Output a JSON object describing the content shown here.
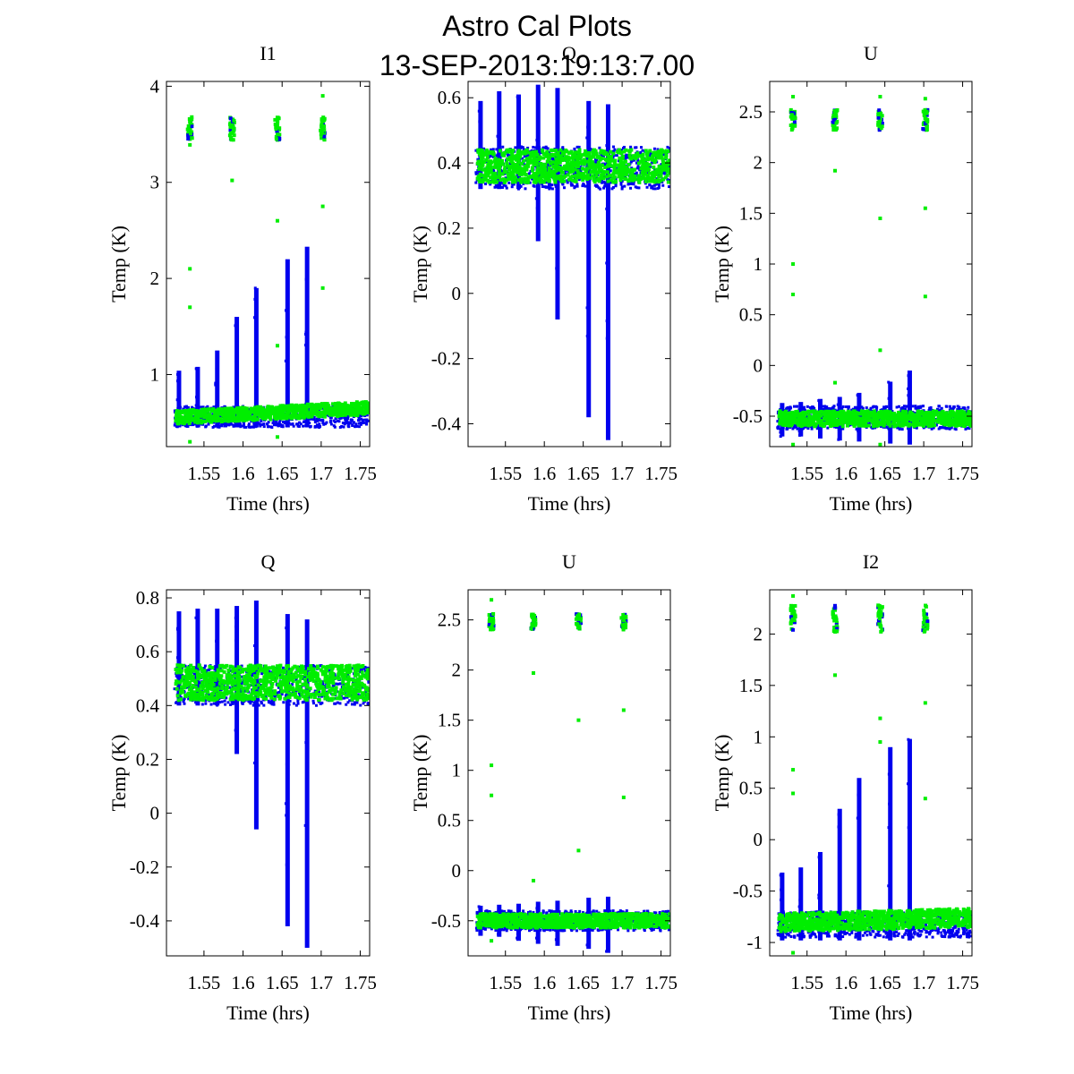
{
  "figure": {
    "title_line1": "Astro Cal Plots",
    "title_line2": "13-SEP-2013:19:13:7.00"
  },
  "colors": {
    "blue": "#0000ee",
    "green": "#00ee00"
  },
  "chart_data": [
    {
      "type": "scatter",
      "title": "I1",
      "xlabel": "Time (hrs)",
      "ylabel": "Temp (K)",
      "xlim": [
        1.502,
        1.762
      ],
      "ylim": [
        0.25,
        4.05
      ],
      "xticks": [
        1.55,
        1.6,
        1.65,
        1.7,
        1.75
      ],
      "xtick_labels": [
        "1.55",
        "1.6",
        "1.65",
        "1.7",
        "1.75"
      ],
      "yticks": [
        1,
        2,
        3,
        4
      ],
      "ytick_labels": [
        "1",
        "2",
        "3",
        "4"
      ],
      "band": {
        "blue": [
          0.45,
          0.67
        ],
        "green": [
          0.48,
          0.62
        ],
        "green_trend": 0.1
      },
      "spikes": [
        {
          "x": 1.518,
          "top": 1.04,
          "bottom": 0.45
        },
        {
          "x": 1.542,
          "top": 1.08,
          "bottom": 0.45
        },
        {
          "x": 1.567,
          "top": 1.25,
          "bottom": 0.45
        },
        {
          "x": 1.592,
          "top": 1.6,
          "bottom": 0.45
        },
        {
          "x": 1.617,
          "top": 1.9,
          "bottom": 0.45
        },
        {
          "x": 1.657,
          "top": 2.2,
          "bottom": 0.45
        },
        {
          "x": 1.682,
          "top": 2.33,
          "bottom": 0.45
        }
      ],
      "cal_clusters": [
        {
          "x": 1.532,
          "center": 3.56,
          "spread": 0.12
        },
        {
          "x": 1.586,
          "center": 3.56,
          "spread": 0.12
        },
        {
          "x": 1.644,
          "center": 3.56,
          "spread": 0.12
        },
        {
          "x": 1.702,
          "center": 3.56,
          "spread": 0.12
        }
      ],
      "outliers": [
        {
          "x": 1.532,
          "y": 3.39
        },
        {
          "x": 1.532,
          "y": 2.1
        },
        {
          "x": 1.532,
          "y": 1.7
        },
        {
          "x": 1.586,
          "y": 3.02
        },
        {
          "x": 1.644,
          "y": 2.6
        },
        {
          "x": 1.644,
          "y": 1.3
        },
        {
          "x": 1.702,
          "y": 3.9
        },
        {
          "x": 1.702,
          "y": 2.75
        },
        {
          "x": 1.702,
          "y": 1.9
        },
        {
          "x": 1.532,
          "y": 0.3
        },
        {
          "x": 1.644,
          "y": 0.35
        }
      ]
    },
    {
      "type": "scatter",
      "title": "Q",
      "xlabel": "Time (hrs)",
      "ylabel": "Temp (K)",
      "xlim": [
        1.502,
        1.762
      ],
      "ylim": [
        -0.47,
        0.65
      ],
      "xticks": [
        1.55,
        1.6,
        1.65,
        1.7,
        1.75
      ],
      "xtick_labels": [
        "1.55",
        "1.6",
        "1.65",
        "1.7",
        "1.75"
      ],
      "yticks": [
        -0.4,
        -0.2,
        0,
        0.2,
        0.4,
        0.6
      ],
      "ytick_labels": [
        "-0.4",
        "-0.2",
        "0",
        "0.2",
        "0.4",
        "0.6"
      ],
      "band": {
        "blue": [
          0.32,
          0.45
        ],
        "green": [
          0.34,
          0.44
        ],
        "green_trend": 0
      },
      "spikes": [
        {
          "x": 1.518,
          "top": 0.59,
          "bottom": 0.32
        },
        {
          "x": 1.542,
          "top": 0.62,
          "bottom": 0.32
        },
        {
          "x": 1.567,
          "top": 0.61,
          "bottom": 0.32
        },
        {
          "x": 1.592,
          "top": 0.64,
          "bottom": 0.16
        },
        {
          "x": 1.617,
          "top": 0.63,
          "bottom": -0.08
        },
        {
          "x": 1.657,
          "top": 0.59,
          "bottom": -0.38
        },
        {
          "x": 1.682,
          "top": 0.58,
          "bottom": -0.45
        }
      ],
      "cal_clusters": [],
      "outliers": []
    },
    {
      "type": "scatter",
      "title": "U",
      "xlabel": "Time (hrs)",
      "ylabel": "Temp (K)",
      "xlim": [
        1.502,
        1.762
      ],
      "ylim": [
        -0.8,
        2.8
      ],
      "xticks": [
        1.55,
        1.6,
        1.65,
        1.7,
        1.75
      ],
      "xtick_labels": [
        "1.55",
        "1.6",
        "1.65",
        "1.7",
        "1.75"
      ],
      "yticks": [
        -0.5,
        0,
        0.5,
        1,
        1.5,
        2,
        2.5
      ],
      "ytick_labels": [
        "-0.5",
        "0",
        "0.5",
        "1",
        "1.5",
        "2",
        "2.5"
      ],
      "band": {
        "blue": [
          -0.63,
          -0.4
        ],
        "green": [
          -0.6,
          -0.45
        ],
        "green_trend": 0
      },
      "spikes": [
        {
          "x": 1.518,
          "top": -0.37,
          "bottom": -0.7
        },
        {
          "x": 1.542,
          "top": -0.36,
          "bottom": -0.7
        },
        {
          "x": 1.567,
          "top": -0.33,
          "bottom": -0.72
        },
        {
          "x": 1.592,
          "top": -0.31,
          "bottom": -0.74
        },
        {
          "x": 1.617,
          "top": -0.27,
          "bottom": -0.75
        },
        {
          "x": 1.657,
          "top": -0.16,
          "bottom": -0.77
        },
        {
          "x": 1.682,
          "top": -0.05,
          "bottom": -0.78
        }
      ],
      "cal_clusters": [
        {
          "x": 1.532,
          "center": 2.42,
          "spread": 0.1
        },
        {
          "x": 1.586,
          "center": 2.42,
          "spread": 0.1
        },
        {
          "x": 1.644,
          "center": 2.42,
          "spread": 0.1
        },
        {
          "x": 1.702,
          "center": 2.42,
          "spread": 0.1
        }
      ],
      "outliers": [
        {
          "x": 1.532,
          "y": 2.65
        },
        {
          "x": 1.532,
          "y": 1.0
        },
        {
          "x": 1.532,
          "y": 0.7
        },
        {
          "x": 1.586,
          "y": 1.92
        },
        {
          "x": 1.586,
          "y": -0.17
        },
        {
          "x": 1.644,
          "y": 2.65
        },
        {
          "x": 1.644,
          "y": 1.45
        },
        {
          "x": 1.644,
          "y": 0.15
        },
        {
          "x": 1.702,
          "y": 2.63
        },
        {
          "x": 1.702,
          "y": 1.55
        },
        {
          "x": 1.702,
          "y": 0.68
        },
        {
          "x": 1.532,
          "y": -0.78
        },
        {
          "x": 1.644,
          "y": -0.78
        }
      ]
    },
    {
      "type": "scatter",
      "title": "Q",
      "xlabel": "Time (hrs)",
      "ylabel": "Temp (K)",
      "xlim": [
        1.502,
        1.762
      ],
      "ylim": [
        -0.53,
        0.83
      ],
      "xticks": [
        1.55,
        1.6,
        1.65,
        1.7,
        1.75
      ],
      "xtick_labels": [
        "1.55",
        "1.6",
        "1.65",
        "1.7",
        "1.75"
      ],
      "yticks": [
        -0.4,
        -0.2,
        0,
        0.2,
        0.4,
        0.6,
        0.8
      ],
      "ytick_labels": [
        "-0.4",
        "-0.2",
        "0",
        "0.2",
        "0.4",
        "0.6",
        "0.8"
      ],
      "band": {
        "blue": [
          0.4,
          0.55
        ],
        "green": [
          0.42,
          0.55
        ],
        "green_trend": 0
      },
      "spikes": [
        {
          "x": 1.518,
          "top": 0.75,
          "bottom": 0.4
        },
        {
          "x": 1.542,
          "top": 0.76,
          "bottom": 0.4
        },
        {
          "x": 1.567,
          "top": 0.76,
          "bottom": 0.4
        },
        {
          "x": 1.592,
          "top": 0.77,
          "bottom": 0.22
        },
        {
          "x": 1.617,
          "top": 0.79,
          "bottom": -0.06
        },
        {
          "x": 1.657,
          "top": 0.74,
          "bottom": -0.42
        },
        {
          "x": 1.682,
          "top": 0.72,
          "bottom": -0.5
        }
      ],
      "cal_clusters": [],
      "outliers": []
    },
    {
      "type": "scatter",
      "title": "U",
      "xlabel": "Time (hrs)",
      "ylabel": "Temp (K)",
      "xlim": [
        1.502,
        1.762
      ],
      "ylim": [
        -0.85,
        2.8
      ],
      "xticks": [
        1.55,
        1.6,
        1.65,
        1.7,
        1.75
      ],
      "xtick_labels": [
        "1.55",
        "1.6",
        "1.65",
        "1.7",
        "1.75"
      ],
      "yticks": [
        -0.5,
        0,
        0.5,
        1,
        1.5,
        2,
        2.5
      ],
      "ytick_labels": [
        "-0.5",
        "0",
        "0.5",
        "1",
        "1.5",
        "2",
        "2.5"
      ],
      "band": {
        "blue": [
          -0.6,
          -0.4
        ],
        "green": [
          -0.57,
          -0.43
        ],
        "green_trend": 0
      },
      "spikes": [
        {
          "x": 1.518,
          "top": -0.35,
          "bottom": -0.65
        },
        {
          "x": 1.542,
          "top": -0.34,
          "bottom": -0.66
        },
        {
          "x": 1.567,
          "top": -0.33,
          "bottom": -0.7
        },
        {
          "x": 1.592,
          "top": -0.31,
          "bottom": -0.73
        },
        {
          "x": 1.617,
          "top": -0.3,
          "bottom": -0.75
        },
        {
          "x": 1.657,
          "top": -0.27,
          "bottom": -0.78
        },
        {
          "x": 1.682,
          "top": -0.26,
          "bottom": -0.82
        }
      ],
      "cal_clusters": [
        {
          "x": 1.532,
          "center": 2.48,
          "spread": 0.08
        },
        {
          "x": 1.586,
          "center": 2.48,
          "spread": 0.08
        },
        {
          "x": 1.644,
          "center": 2.48,
          "spread": 0.08
        },
        {
          "x": 1.702,
          "center": 2.48,
          "spread": 0.08
        }
      ],
      "outliers": [
        {
          "x": 1.532,
          "y": 2.7
        },
        {
          "x": 1.532,
          "y": 1.05
        },
        {
          "x": 1.532,
          "y": 0.75
        },
        {
          "x": 1.586,
          "y": 1.97
        },
        {
          "x": 1.586,
          "y": -0.1
        },
        {
          "x": 1.644,
          "y": 1.5
        },
        {
          "x": 1.644,
          "y": 0.2
        },
        {
          "x": 1.702,
          "y": 1.6
        },
        {
          "x": 1.702,
          "y": 0.73
        },
        {
          "x": 1.532,
          "y": -0.7
        }
      ]
    },
    {
      "type": "scatter",
      "title": "I2",
      "xlabel": "Time (hrs)",
      "ylabel": "Temp (K)",
      "xlim": [
        1.502,
        1.762
      ],
      "ylim": [
        -1.13,
        2.43
      ],
      "xticks": [
        1.55,
        1.6,
        1.65,
        1.7,
        1.75
      ],
      "xtick_labels": [
        "1.55",
        "1.6",
        "1.65",
        "1.7",
        "1.75"
      ],
      "yticks": [
        -1,
        -0.5,
        0,
        0.5,
        1,
        1.5,
        2
      ],
      "ytick_labels": [
        "-1",
        "-0.5",
        "0",
        "0.5",
        "1",
        "1.5",
        "2"
      ],
      "band": {
        "blue": [
          -0.95,
          -0.7
        ],
        "green": [
          -0.9,
          -0.72
        ],
        "green_trend": 0.05
      },
      "spikes": [
        {
          "x": 1.518,
          "top": -0.32,
          "bottom": -0.98
        },
        {
          "x": 1.542,
          "top": -0.27,
          "bottom": -0.98
        },
        {
          "x": 1.567,
          "top": -0.12,
          "bottom": -0.98
        },
        {
          "x": 1.592,
          "top": 0.3,
          "bottom": -0.98
        },
        {
          "x": 1.617,
          "top": 0.6,
          "bottom": -0.98
        },
        {
          "x": 1.657,
          "top": 0.9,
          "bottom": -0.98
        },
        {
          "x": 1.682,
          "top": 0.98,
          "bottom": -0.98
        }
      ],
      "cal_clusters": [
        {
          "x": 1.532,
          "center": 2.15,
          "spread": 0.13
        },
        {
          "x": 1.586,
          "center": 2.15,
          "spread": 0.13
        },
        {
          "x": 1.644,
          "center": 2.15,
          "spread": 0.13
        },
        {
          "x": 1.702,
          "center": 2.15,
          "spread": 0.13
        }
      ],
      "outliers": [
        {
          "x": 1.532,
          "y": 2.37
        },
        {
          "x": 1.532,
          "y": 0.68
        },
        {
          "x": 1.532,
          "y": 0.45
        },
        {
          "x": 1.586,
          "y": 1.6
        },
        {
          "x": 1.644,
          "y": 1.18
        },
        {
          "x": 1.644,
          "y": 0.95
        },
        {
          "x": 1.702,
          "y": 1.33
        },
        {
          "x": 1.702,
          "y": 0.4
        },
        {
          "x": 1.532,
          "y": -1.1
        }
      ]
    }
  ]
}
